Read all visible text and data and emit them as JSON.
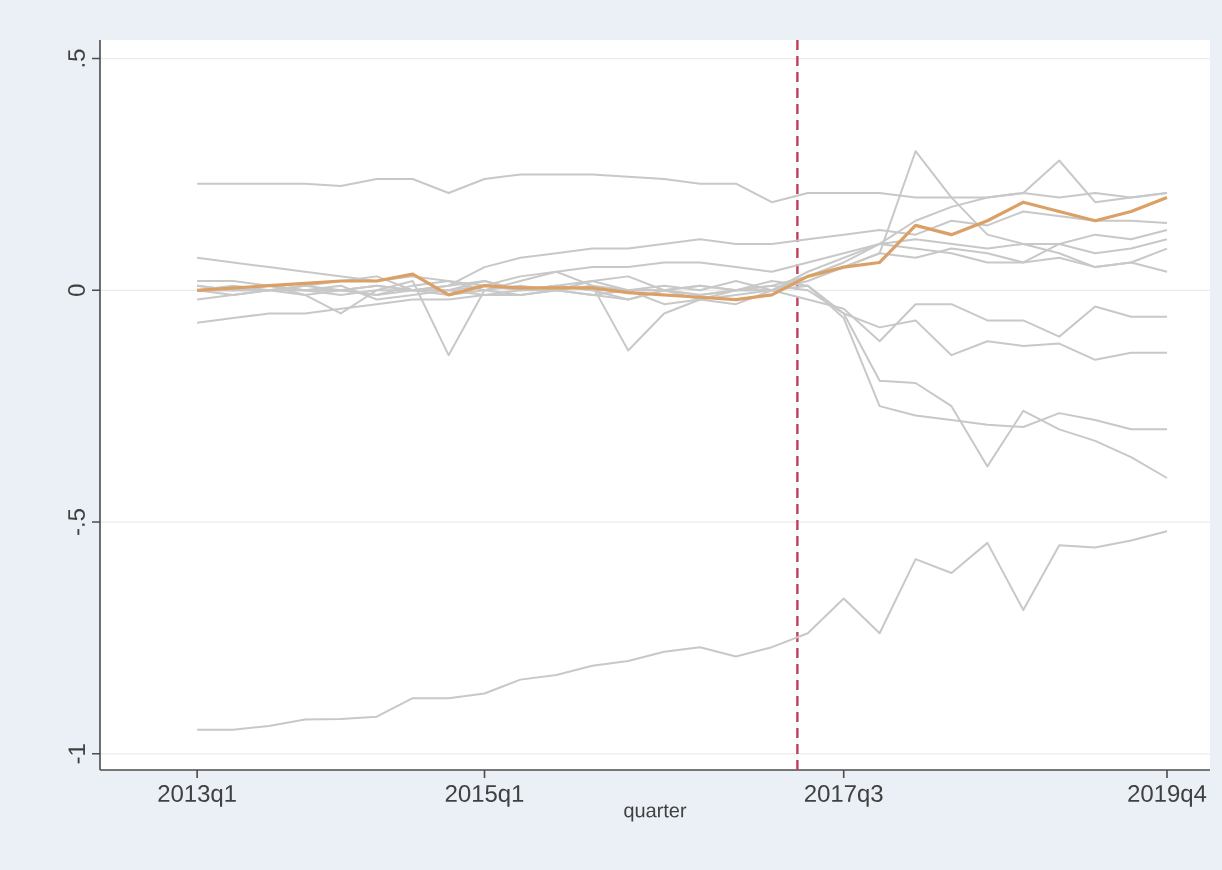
{
  "chart_data": {
    "type": "line",
    "xlabel": "quarter",
    "x": [
      "2013-01",
      "2013-04",
      "2013-07",
      "2013-10",
      "2014-01",
      "2014-04",
      "2014-07",
      "2014-10",
      "2015-01",
      "2015-04",
      "2015-07",
      "2015-10",
      "2016-01",
      "2016-04",
      "2016-07",
      "2016-10",
      "2017-01",
      "2017-04",
      "2017-07",
      "2017-10",
      "2018-01",
      "2018-04",
      "2018-07",
      "2018-10",
      "2019-01",
      "2019-04",
      "2019-07",
      "2019-10"
    ],
    "xlim": [
      "2012-04-28",
      "2020-01-19"
    ],
    "xticks": [
      {
        "value": "2013-01",
        "label": "2013q1"
      },
      {
        "value": "2015-01",
        "label": "2015q1"
      },
      {
        "value": "2017-07",
        "label": "2017q3"
      },
      {
        "value": "2019-10",
        "label": "2019q4"
      }
    ],
    "ylim": [
      -1.035,
      0.54
    ],
    "yticks": [
      {
        "value": -1,
        "label": "-1"
      },
      {
        "value": -0.5,
        "label": "-.5"
      },
      0,
      {
        "value": 0.5,
        "label": ".5"
      }
    ],
    "grid": "y",
    "ref_lines": [
      {
        "axis": "x",
        "value": "2017-03-05",
        "color": "#c0405a",
        "line_style": "dashed"
      }
    ],
    "series": [
      {
        "color": "#c8c8c8",
        "values": [
          0.23,
          0.23,
          0.23,
          0.23,
          0.225,
          0.24,
          0.24,
          0.21,
          0.24,
          0.25,
          0.25,
          0.25,
          0.245,
          0.24,
          0.23,
          0.23,
          0.19,
          0.21,
          0.21,
          0.21,
          0.2,
          0.2,
          0.2,
          0.21,
          0.2,
          0.21,
          0.2,
          0.21
        ]
      },
      {
        "color": "#c8c8c8",
        "values": [
          -0.948,
          -0.948,
          -0.94,
          -0.926,
          -0.925,
          -0.92,
          -0.88,
          -0.88,
          -0.87,
          -0.84,
          -0.83,
          -0.81,
          -0.8,
          -0.78,
          -0.77,
          -0.79,
          -0.77,
          -0.74,
          -0.665,
          -0.74,
          -0.58,
          -0.61,
          -0.545,
          -0.69,
          -0.55,
          -0.555,
          -0.54,
          -0.52
        ]
      },
      {
        "color": "#c8c8c8",
        "values": [
          0.02,
          0.02,
          0.01,
          0.0,
          0.0,
          -0.01,
          0.01,
          0.02,
          0.0,
          -0.01,
          0.0,
          0.01,
          0.0,
          0.0,
          -0.01,
          0.0,
          0.0,
          -0.02,
          -0.04,
          -0.11,
          -0.03,
          -0.03,
          -0.065,
          -0.065,
          -0.1,
          -0.035,
          -0.057,
          -0.057
        ]
      },
      {
        "color": "#c8c8c8",
        "values": [
          -0.02,
          -0.01,
          0.0,
          0.0,
          0.01,
          -0.02,
          -0.01,
          0.0,
          0.02,
          0.0,
          0.01,
          0.0,
          -0.02,
          0.0,
          0.01,
          0.0,
          0.01,
          0.0,
          -0.05,
          -0.08,
          -0.065,
          -0.14,
          -0.11,
          -0.12,
          -0.115,
          -0.15,
          -0.135,
          -0.135
        ]
      },
      {
        "color": "#c8c8c8",
        "values": [
          -0.07,
          -0.06,
          -0.05,
          -0.05,
          -0.04,
          -0.03,
          -0.02,
          -0.02,
          -0.01,
          -0.01,
          0.0,
          -0.01,
          -0.02,
          0.0,
          -0.02,
          -0.01,
          0.0,
          0.01,
          -0.06,
          -0.25,
          -0.27,
          -0.28,
          -0.29,
          -0.295,
          -0.265,
          -0.28,
          -0.3,
          -0.3
        ]
      },
      {
        "color": "#c8c8c8",
        "values": [
          0.0,
          0.0,
          0.01,
          -0.01,
          -0.05,
          0.0,
          0.02,
          -0.14,
          0.0,
          0.01,
          0.0,
          0.02,
          0.03,
          0.0,
          -0.01,
          0.0,
          0.02,
          0.01,
          -0.05,
          -0.195,
          -0.2,
          -0.25,
          -0.38,
          -0.26,
          -0.3,
          -0.325,
          -0.36,
          -0.405
        ]
      },
      {
        "color": "#c8c8c8",
        "values": [
          0.0,
          0.0,
          0.0,
          -0.01,
          0.0,
          0.01,
          0.0,
          0.01,
          0.05,
          0.07,
          0.08,
          0.09,
          0.09,
          0.1,
          0.11,
          0.1,
          0.1,
          0.11,
          0.12,
          0.13,
          0.12,
          0.15,
          0.14,
          0.17,
          0.16,
          0.15,
          0.15,
          0.145
        ]
      },
      {
        "color": "#c8c8c8",
        "values": [
          0.07,
          0.06,
          0.05,
          0.04,
          0.03,
          0.02,
          0.03,
          0.02,
          0.01,
          0.03,
          0.04,
          0.05,
          0.05,
          0.06,
          0.06,
          0.05,
          0.04,
          0.06,
          0.08,
          0.1,
          0.11,
          0.1,
          0.09,
          0.1,
          0.1,
          0.12,
          0.11,
          0.13
        ]
      },
      {
        "color": "#c8c8c8",
        "values": [
          0.01,
          0.0,
          0.0,
          0.01,
          0.02,
          0.03,
          0.0,
          -0.01,
          0.0,
          0.02,
          0.04,
          0.01,
          -0.13,
          -0.05,
          -0.02,
          0.0,
          0.01,
          0.03,
          0.05,
          0.08,
          0.07,
          0.09,
          0.08,
          0.06,
          0.1,
          0.08,
          0.09,
          0.11
        ]
      },
      {
        "color": "#c8c8c8",
        "values": [
          0.0,
          0.01,
          0.0,
          0.0,
          0.0,
          0.01,
          0.0,
          0.0,
          0.01,
          0.0,
          0.01,
          0.02,
          0.0,
          0.01,
          0.0,
          0.02,
          0.0,
          0.02,
          0.05,
          0.08,
          0.3,
          0.2,
          0.12,
          0.1,
          0.08,
          0.05,
          0.06,
          0.09
        ]
      },
      {
        "color": "#c8c8c8",
        "values": [
          0.0,
          -0.01,
          0.0,
          0.01,
          0.0,
          -0.01,
          0.0,
          0.01,
          0.02,
          0.0,
          0.0,
          -0.01,
          0.0,
          0.0,
          0.01,
          0.0,
          0.0,
          0.03,
          0.06,
          0.1,
          0.15,
          0.18,
          0.2,
          0.21,
          0.28,
          0.19,
          0.2,
          0.21
        ]
      },
      {
        "color": "#c8c8c8",
        "values": [
          0.01,
          0.0,
          0.01,
          0.0,
          -0.01,
          0.0,
          0.0,
          0.0,
          -0.01,
          0.0,
          0.01,
          0.0,
          0.0,
          -0.03,
          -0.02,
          -0.03,
          0.0,
          0.04,
          0.07,
          0.1,
          0.09,
          0.08,
          0.06,
          0.06,
          0.07,
          0.05,
          0.06,
          0.04
        ]
      },
      {
        "color": "#dba066",
        "values": [
          0,
          0.005,
          0.01,
          0.015,
          0.02,
          0.02,
          0.035,
          -0.01,
          0.01,
          0.005,
          0.005,
          0.005,
          -0.005,
          -0.01,
          -0.015,
          -0.02,
          -0.01,
          0.03,
          0.05,
          0.06,
          0.14,
          0.12,
          0.15,
          0.19,
          0.17,
          0.15,
          0.17,
          0.2
        ]
      }
    ]
  }
}
